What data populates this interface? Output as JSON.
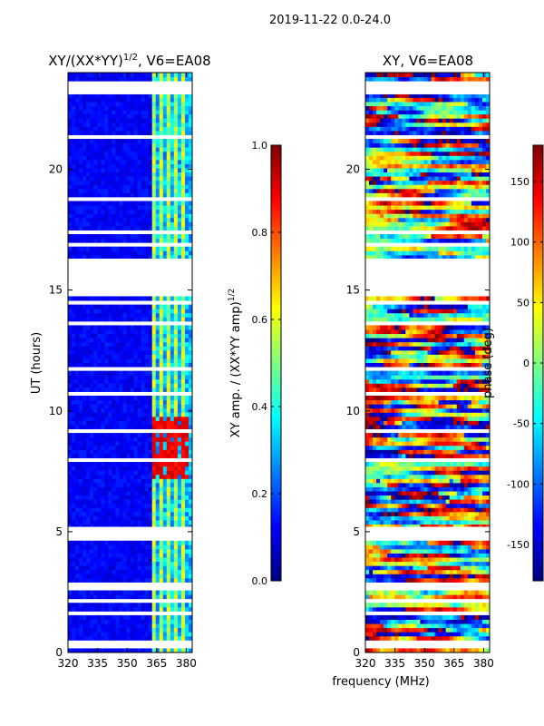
{
  "header": {
    "title": "2019-11-22 0.0-24.0"
  },
  "xlabel": "frequency (MHz)",
  "colors": {
    "jet": [
      "#00007f",
      "#0000ff",
      "#007fff",
      "#00ffff",
      "#7fff7f",
      "#ffff00",
      "#ff7f00",
      "#ff0000",
      "#7f0000"
    ],
    "gap": "#ffffff"
  },
  "chart_data": [
    {
      "type": "heatmap",
      "title_main": "XY/(XX*YY)",
      "title_sup": "1/2",
      "title_tail": ", V6=EA08",
      "ylabel": "UT (hours)",
      "xlim": [
        320,
        383
      ],
      "ylim": [
        0,
        24
      ],
      "xticks": [
        "320",
        "335",
        "350",
        "365",
        "380"
      ],
      "yticks": [
        "0",
        "5",
        "10",
        "15",
        "20"
      ],
      "colorbar": {
        "label_main": "XY amp. / (XX*YY amp)",
        "label_sup": "1/2",
        "range": [
          0.0,
          1.0
        ],
        "ticks": [
          "0.0",
          "0.2",
          "0.4",
          "0.6",
          "0.8",
          "1.0"
        ]
      },
      "gaps_hours": [
        [
          15.0,
          16.3
        ],
        [
          4.7,
          5.2
        ],
        [
          23.1,
          23.3
        ]
      ],
      "bright_channels_mhz": [
        364,
        367,
        371,
        375,
        379
      ],
      "hot_region": {
        "t_start": 7.2,
        "t_end": 9.8,
        "f_start": 363,
        "f_end": 381,
        "value": 0.85
      }
    },
    {
      "type": "heatmap",
      "title": "XY, V6=EA08",
      "xlim": [
        320,
        383
      ],
      "ylim": [
        0,
        24
      ],
      "xticks": [
        "320",
        "335",
        "350",
        "365",
        "380"
      ],
      "yticks": [
        "0",
        "5",
        "10",
        "15",
        "20"
      ],
      "colorbar": {
        "label": "phase (deg)",
        "range": [
          -180,
          180
        ],
        "ticks": [
          "-150",
          "-100",
          "-50",
          "0",
          "50",
          "100",
          "150"
        ]
      },
      "gaps_hours": [
        [
          15.0,
          16.3
        ],
        [
          4.7,
          5.2
        ],
        [
          23.1,
          23.3
        ]
      ]
    }
  ]
}
